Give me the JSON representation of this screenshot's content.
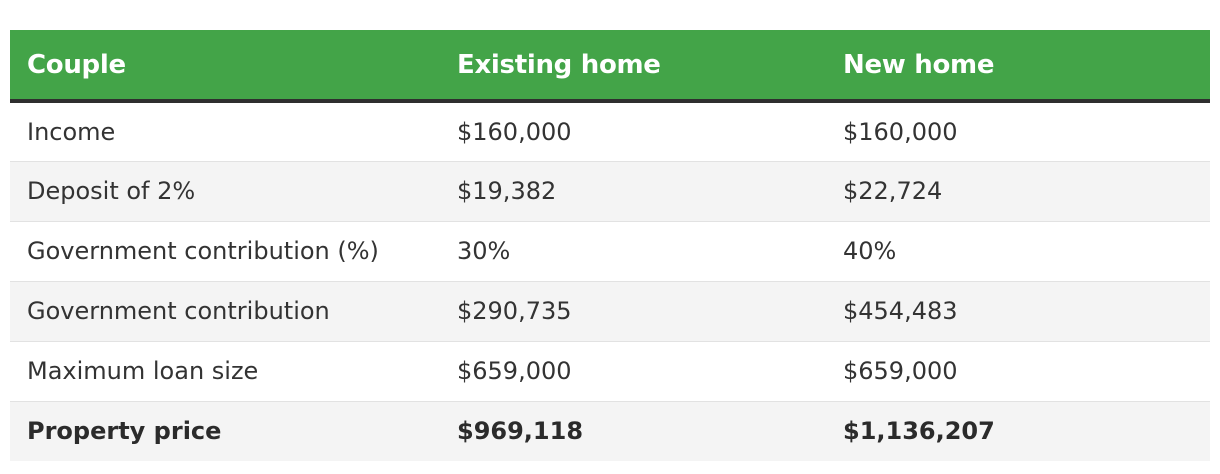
{
  "table": {
    "headers": [
      "Couple",
      "Existing home",
      "New home"
    ],
    "rows": [
      [
        "Income",
        "$160,000",
        "$160,000"
      ],
      [
        "Deposit of 2%",
        "$19,382",
        "$22,724"
      ],
      [
        "Government contribution (%)",
        "30%",
        "40%"
      ],
      [
        "Government contribution",
        "$290,735",
        "$454,483"
      ],
      [
        "Maximum loan size",
        "$659,000",
        "$659,000"
      ],
      [
        "Property price",
        "$969,118",
        "$1,136,207"
      ]
    ],
    "header_color": "#43a448"
  }
}
